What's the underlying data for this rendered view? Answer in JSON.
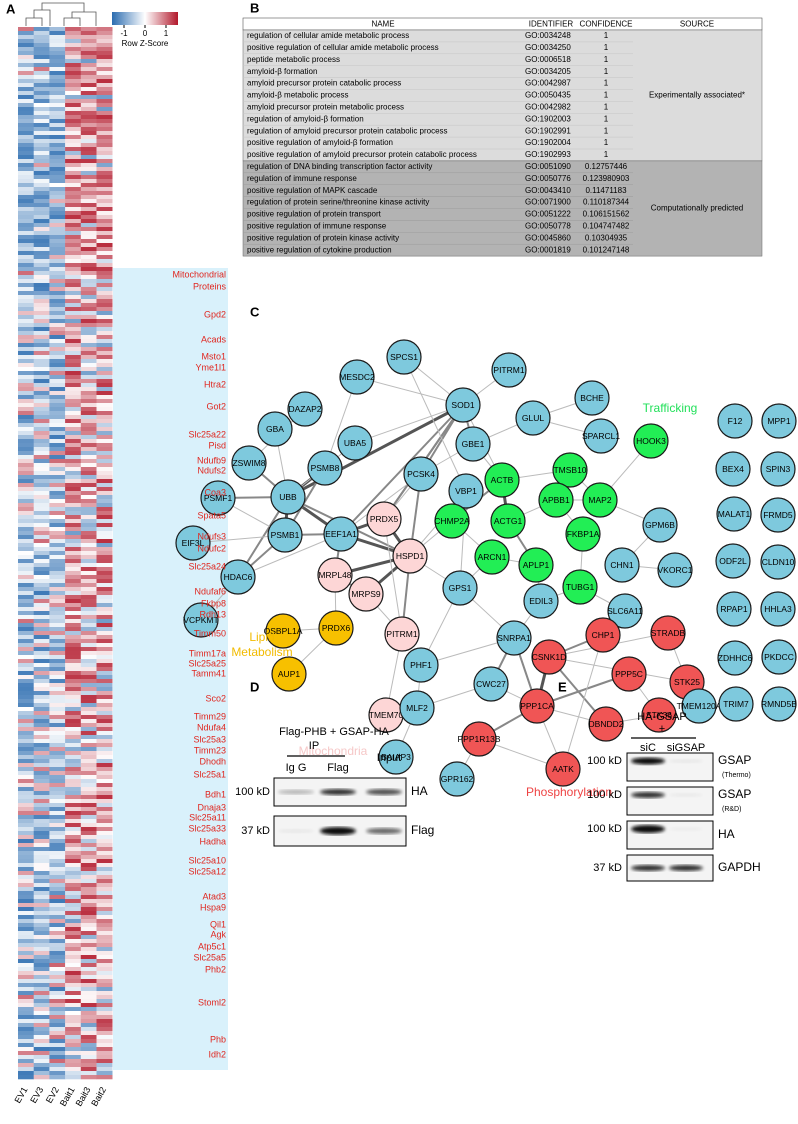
{
  "panels": {
    "a": "A",
    "b": "B",
    "c": "C",
    "d": "D",
    "e": "E"
  },
  "heatmap": {
    "colorbar_label": "Row Z-Score",
    "colorbar_ticks": [
      -1,
      0,
      1
    ],
    "columns": [
      "EV1",
      "EV3",
      "EV2",
      "Bait1",
      "Bait3",
      "Bait2"
    ],
    "annotation": [
      "Mitochondrial",
      "Proteins"
    ],
    "genes": [
      "Gpd2",
      "Acads",
      "Msto1",
      "Yme1l1",
      "Htra2",
      "Got2",
      "Slc25a22",
      "Pisd",
      "Ndufb9",
      "Ndufs2",
      "Coa3",
      "Spata5",
      "Ndufs3",
      "Ndufc2",
      "Slc25a24",
      "Ndufaf6",
      "Fkbp8",
      "Rdh13",
      "Timm50",
      "Timm17a",
      "Slc25a25",
      "Tamm41",
      "Sco2",
      "Timm29",
      "Ndufa4",
      "Slc25a3",
      "Timm23",
      "Dhodh",
      "Slc25a1",
      "Bdh1",
      "Dnaja3",
      "Slc25a11",
      "Slc25a33",
      "Hadha",
      "Slc25a10",
      "Slc25a12",
      "Atad3",
      "Hspa9",
      "Qil1",
      "Agk",
      "Atp5c1",
      "Slc25a5",
      "Phb2",
      "Stoml2",
      "Phb",
      "Idh2"
    ]
  },
  "table": {
    "header": [
      "NAME",
      "IDENTIFIER",
      "CONFIDENCE",
      "SOURCE"
    ],
    "groups": [
      {
        "source": "Experimentally associated*",
        "rows": [
          [
            "regulation of cellular amide metabolic process",
            "GO:0034248",
            "1"
          ],
          [
            "positive regulation of cellular amide metabolic process",
            "GO:0034250",
            "1"
          ],
          [
            "peptide metabolic process",
            "GO:0006518",
            "1"
          ],
          [
            "amyloid-β formation",
            "GO:0034205",
            "1"
          ],
          [
            "amyloid precursor protein catabolic process",
            "GO:0042987",
            "1"
          ],
          [
            "amyloid-β metabolic process",
            "GO:0050435",
            "1"
          ],
          [
            "amyloid precursor protein metabolic process",
            "GO:0042982",
            "1"
          ],
          [
            "regulation of amyloid-β formation",
            "GO:1902003",
            "1"
          ],
          [
            "regulation of amyloid precursor protein catabolic process",
            "GO:1902991",
            "1"
          ],
          [
            "positive regulation of amyloid-β formation",
            "GO:1902004",
            "1"
          ],
          [
            "positive regulation of amyloid precursor protein catabolic process",
            "GO:1902993",
            "1"
          ]
        ]
      },
      {
        "source": "Computationally predicted",
        "rows": [
          [
            "regulation of DNA binding transcription factor activity",
            "GO:0051090",
            "0.12757446"
          ],
          [
            "regulation of immune response",
            "GO:0050776",
            "0.123980903"
          ],
          [
            "positive regulation of MAPK cascade",
            "GO:0043410",
            "0.11471183"
          ],
          [
            "regulation of protein serine/threonine kinase activity",
            "GO:0071900",
            "0.110187344"
          ],
          [
            "positive regulation of protein transport",
            "GO:0051222",
            "0.106151562"
          ],
          [
            "positive regulation of immune response",
            "GO:0050778",
            "0.104747482"
          ],
          [
            "positive regulation of protein kinase activity",
            "GO:0045860",
            "0.10304935"
          ],
          [
            "positive regulation of cytokine production",
            "GO:0001819",
            "0.101247148"
          ]
        ]
      }
    ]
  },
  "network": {
    "clusters": [
      {
        "label": "Trafficking",
        "color": "#22e05a"
      },
      {
        "label": "Lipid Metabolism",
        "color": "#f2bb00"
      },
      {
        "label": "Mitochondria",
        "color": "#f6c8c8"
      },
      {
        "label": "Phosphorylation",
        "color": "#ee4444"
      }
    ],
    "nodes": [
      {
        "label": "SPCS1",
        "color": "#7ec9dd"
      },
      {
        "label": "PITRM1",
        "color": "#7ec9dd"
      },
      {
        "label": "BCHE",
        "color": "#7ec9dd"
      },
      {
        "label": "MESDC2",
        "color": "#7ec9dd"
      },
      {
        "label": "SOD1",
        "color": "#7ec9dd"
      },
      {
        "label": "GLUL",
        "color": "#7ec9dd"
      },
      {
        "label": "DAZAP2",
        "color": "#7ec9dd"
      },
      {
        "label": "GBA",
        "color": "#7ec9dd"
      },
      {
        "label": "UBA5",
        "color": "#7ec9dd"
      },
      {
        "label": "GBE1",
        "color": "#7ec9dd"
      },
      {
        "label": "SPARCL1",
        "color": "#7ec9dd"
      },
      {
        "label": "HOOK3",
        "color": "#22ee55"
      },
      {
        "label": "ZSWIM8",
        "color": "#7ec9dd"
      },
      {
        "label": "PSMB8",
        "color": "#7ec9dd"
      },
      {
        "label": "PCSK4",
        "color": "#7ec9dd"
      },
      {
        "label": "TMSB10",
        "color": "#22ee55"
      },
      {
        "label": "ACTB",
        "color": "#22ee55"
      },
      {
        "label": "VBP1",
        "color": "#7ec9dd"
      },
      {
        "label": "APBB1",
        "color": "#22ee55"
      },
      {
        "label": "MAP2",
        "color": "#22ee55"
      },
      {
        "label": "GPM6B",
        "color": "#7ec9dd"
      },
      {
        "label": "PSMF1",
        "color": "#7ec9dd"
      },
      {
        "label": "UBB",
        "color": "#7ec9dd"
      },
      {
        "label": "PRDX5",
        "color": "#fdd6d6"
      },
      {
        "label": "CHMP2A",
        "color": "#22ee55"
      },
      {
        "label": "ACTG1",
        "color": "#22ee55"
      },
      {
        "label": "FKBP1A",
        "color": "#22ee55"
      },
      {
        "label": "PSMB1",
        "color": "#7ec9dd"
      },
      {
        "label": "EEF1A1",
        "color": "#7ec9dd"
      },
      {
        "label": "HSPD1",
        "color": "#fdd6d6"
      },
      {
        "label": "ARCN1",
        "color": "#22ee55"
      },
      {
        "label": "APLP1",
        "color": "#22ee55"
      },
      {
        "label": "CHN1",
        "color": "#7ec9dd"
      },
      {
        "label": "VKORC1",
        "color": "#7ec9dd"
      },
      {
        "label": "EIF3L",
        "color": "#7ec9dd"
      },
      {
        "label": "HDAC6",
        "color": "#7ec9dd"
      },
      {
        "label": "MRPL48",
        "color": "#fdd6d6"
      },
      {
        "label": "GPS1",
        "color": "#7ec9dd"
      },
      {
        "label": "TUBG1",
        "color": "#22ee55"
      },
      {
        "label": "SLC6A11",
        "color": "#7ec9dd"
      },
      {
        "label": "EDIL3",
        "color": "#7ec9dd"
      },
      {
        "label": "MRPS9",
        "color": "#fdd6d6"
      },
      {
        "label": "VCPKMT",
        "color": "#7ec9dd"
      },
      {
        "label": "OSBPL1A",
        "color": "#f7c000"
      },
      {
        "label": "PRDX6",
        "color": "#f7c000"
      },
      {
        "label": "PITRM1",
        "color": "#fdd6d6"
      },
      {
        "label": "PHF1",
        "color": "#7ec9dd"
      },
      {
        "label": "SNRPA1",
        "color": "#7ec9dd"
      },
      {
        "label": "CHP1",
        "color": "#f05555"
      },
      {
        "label": "STRADB",
        "color": "#f05555"
      },
      {
        "label": "CSNK1D",
        "color": "#f05555"
      },
      {
        "label": "PPP5C",
        "color": "#f05555"
      },
      {
        "label": "STK25",
        "color": "#f05555"
      },
      {
        "label": "AUP1",
        "color": "#f7c000"
      },
      {
        "label": "TMEM70",
        "color": "#fdd6d6"
      },
      {
        "label": "MLF2",
        "color": "#7ec9dd"
      },
      {
        "label": "CWC27",
        "color": "#7ec9dd"
      },
      {
        "label": "PPP1CA",
        "color": "#f05555"
      },
      {
        "label": "STK36",
        "color": "#f05555"
      },
      {
        "label": "DBNDD2",
        "color": "#f05555"
      },
      {
        "label": "PPP1R13B",
        "color": "#f05555"
      },
      {
        "label": "BAIAP3",
        "color": "#7ec9dd"
      },
      {
        "label": "AATK",
        "color": "#f05555"
      },
      {
        "label": "GPR162",
        "color": "#7ec9dd"
      },
      {
        "label": "F12",
        "color": "#7ec9dd"
      },
      {
        "label": "MPP1",
        "color": "#7ec9dd"
      },
      {
        "label": "BEX4",
        "color": "#7ec9dd"
      },
      {
        "label": "SPIN3",
        "color": "#7ec9dd"
      },
      {
        "label": "MALAT1",
        "color": "#7ec9dd"
      },
      {
        "label": "FRMD5",
        "color": "#7ec9dd"
      },
      {
        "label": "ODF2L",
        "color": "#7ec9dd"
      },
      {
        "label": "CLDN10",
        "color": "#7ec9dd"
      },
      {
        "label": "RPAP1",
        "color": "#7ec9dd"
      },
      {
        "label": "HHLA3",
        "color": "#7ec9dd"
      },
      {
        "label": "ZDHHC6",
        "color": "#7ec9dd"
      },
      {
        "label": "PKDCC",
        "color": "#7ec9dd"
      },
      {
        "label": "TMEM120A",
        "color": "#7ec9dd"
      },
      {
        "label": "TRIM7",
        "color": "#7ec9dd"
      },
      {
        "label": "RMND5B",
        "color": "#7ec9dd"
      }
    ]
  },
  "blot_d": {
    "title": "Flag-PHB + GSAP-HA",
    "ip": "IP",
    "lanes": [
      "Ig G",
      "Flag",
      "Input"
    ],
    "rows": [
      {
        "marker": "100 kD",
        "label": "HA"
      },
      {
        "marker": "37 kD",
        "label": "Flag"
      }
    ]
  },
  "blot_e": {
    "title": "HA-GSAP",
    "plus": "+",
    "lanes": [
      "siC",
      "siGSAP"
    ],
    "rows": [
      {
        "marker": "100 kD",
        "label": "GSAP",
        "sub": "(Thermo)"
      },
      {
        "marker": "100 kD",
        "label": "GSAP",
        "sub": "(R&D)"
      },
      {
        "marker": "100 kD",
        "label": "HA"
      },
      {
        "marker": "37 kD",
        "label": "GAPDH"
      }
    ]
  }
}
